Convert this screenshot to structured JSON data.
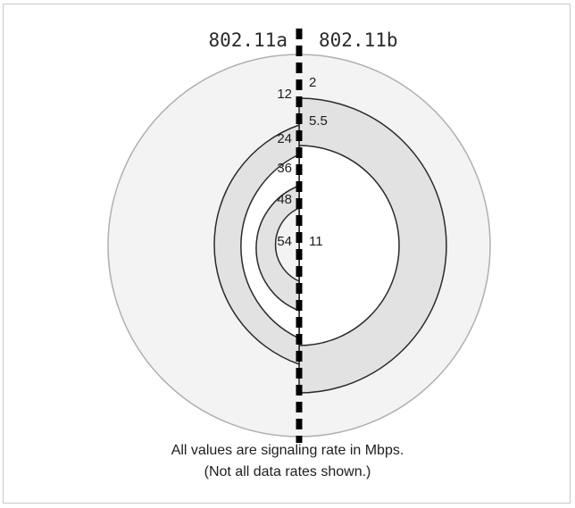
{
  "diagram": {
    "left_standard": "802.11a",
    "right_standard": "802.11b",
    "left_rates": [
      "12",
      "24",
      "36",
      "48",
      "54"
    ],
    "right_rates": [
      "2",
      "5.5",
      "11"
    ],
    "colors": {
      "outer_ring": "#f3f3f3",
      "shaded_ring": "#e2e2e2",
      "white_ring": "#ffffff",
      "outline": "#9a9a9a",
      "outline_dark": "#2a2a2a",
      "divider": "#000000"
    }
  },
  "caption": {
    "line1": "All values are signaling rate in Mbps.",
    "line2": "(Not all data rates shown.)"
  }
}
